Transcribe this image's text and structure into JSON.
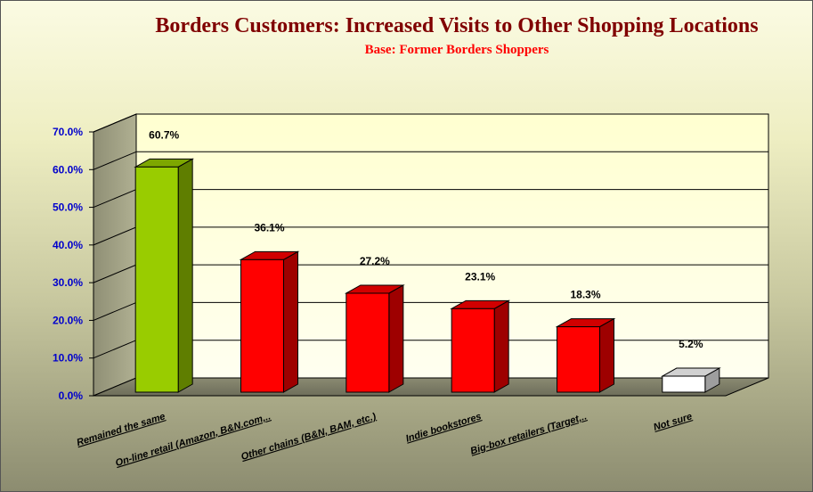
{
  "chart_data": {
    "type": "bar",
    "title": "Borders Customers:  Increased Visits to Other Shopping Locations",
    "subtitle": "Base:  Former Borders Shoppers",
    "categories": [
      "Remained the same",
      "On-line retail (Amazon, B&N.com,..",
      "Other chains (B&N, BAM,  etc.)",
      "Indie bookstores",
      "Big-box retailers (Target,..",
      "Not sure"
    ],
    "values": [
      60.7,
      36.1,
      27.2,
      23.1,
      18.3,
      5.2
    ],
    "value_labels": [
      "60.7%",
      "36.1%",
      "27.2%",
      "23.1%",
      "18.3%",
      "5.2%"
    ],
    "bar_colors": [
      "#99cc00",
      "#ff0000",
      "#ff0000",
      "#ff0000",
      "#ff0000",
      "#ffffff"
    ],
    "y_ticks": [
      "0.0%",
      "10.0%",
      "20.0%",
      "30.0%",
      "40.0%",
      "50.0%",
      "60.0%",
      "70.0%"
    ],
    "ylim": [
      0,
      70
    ],
    "grid": true,
    "three_d": true,
    "colors": {
      "title": "#800000",
      "subtitle": "#ff0000",
      "axis_ticks": "#0000cc",
      "plot_back_wall": "#ffffcc"
    }
  }
}
